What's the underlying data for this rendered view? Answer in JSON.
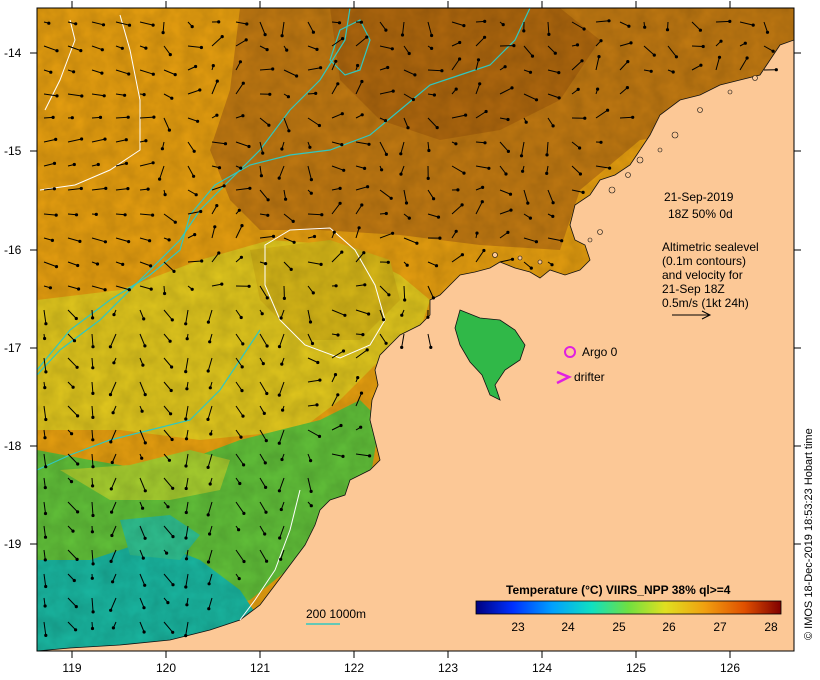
{
  "map": {
    "lat_labels": [
      "-14",
      "-15",
      "-16",
      "-17",
      "-18",
      "-19"
    ],
    "lon_labels": [
      "119",
      "120",
      "121",
      "122",
      "123",
      "124",
      "125",
      "126"
    ],
    "colors": {
      "land": "#fcc896",
      "sst_dark": "#b86a10",
      "sst_orange": "#e89a10",
      "sst_yellow": "#e8d020",
      "sst_green": "#6ac838",
      "sst_teal": "#18b8a0",
      "contour_depth": "#30c8c0",
      "argo": "#e020e0"
    }
  },
  "annotations": {
    "date_line1": "21-Sep-2019",
    "date_line2": "18Z  50% 0d",
    "alt_line1": "Altimetric sealevel",
    "alt_line2": "(0.1m contours)",
    "alt_line3": "and velocity for",
    "alt_line4": "21-Sep 18Z",
    "alt_line5": "0.5m/s (1kt 24h)",
    "argo_label": "Argo 0",
    "drifter_label": "drifter",
    "depth_label": "200  1000m"
  },
  "colorbar": {
    "title": "Temperature (°C) VIIRS_NPP 38% ql>=4",
    "ticks": [
      "23",
      "24",
      "25",
      "26",
      "27",
      "28"
    ]
  },
  "copyright": "© IMOS 18-Dec-2019 18:53:23 Hobart time"
}
